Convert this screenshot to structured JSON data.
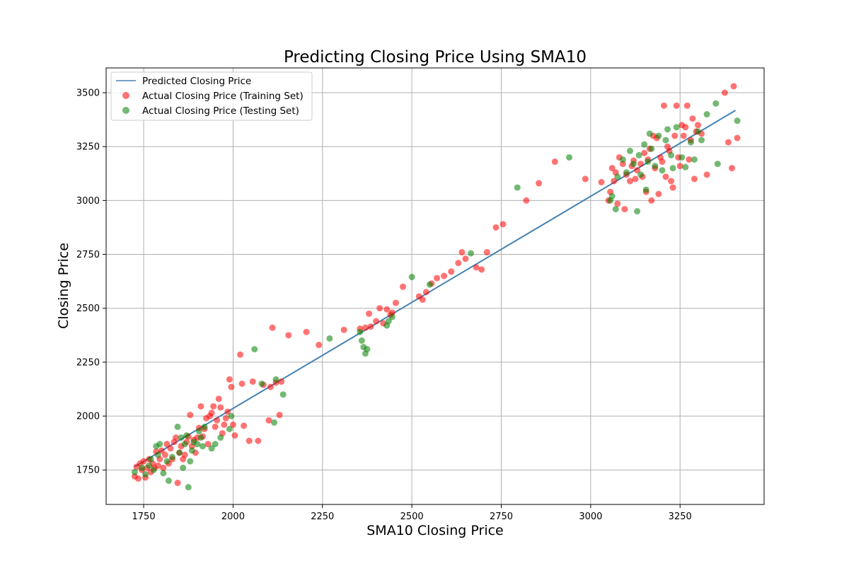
{
  "chart_data": {
    "type": "scatter",
    "title": "Predicting Closing Price Using SMA10",
    "xlabel": "SMA10 Closing Price",
    "ylabel": "Closing Price",
    "xlim": [
      1645,
      3485
    ],
    "ylim": [
      1590,
      3615
    ],
    "x_ticks": [
      1750,
      2000,
      2250,
      2500,
      2750,
      3000,
      3250
    ],
    "y_ticks": [
      1750,
      2000,
      2250,
      2500,
      2750,
      3000,
      3250,
      3500
    ],
    "grid": true,
    "legend_position": "top-left",
    "colors": {
      "line": "#4682b4",
      "training": "#ff0000",
      "testing": "#008000"
    },
    "series": [
      {
        "name": "Predicted Closing Price",
        "kind": "line",
        "points": [
          [
            1725,
            1765
          ],
          [
            3405,
            3418
          ]
        ]
      },
      {
        "name": "Actual Closing Price (Training Set)",
        "kind": "scatter",
        "points": [
          [
            1725,
            1720
          ],
          [
            1730,
            1765
          ],
          [
            1735,
            1710
          ],
          [
            1740,
            1780
          ],
          [
            1745,
            1750
          ],
          [
            1750,
            1790
          ],
          [
            1755,
            1715
          ],
          [
            1760,
            1760
          ],
          [
            1765,
            1800
          ],
          [
            1770,
            1740
          ],
          [
            1775,
            1780
          ],
          [
            1780,
            1760
          ],
          [
            1785,
            1835
          ],
          [
            1790,
            1770
          ],
          [
            1795,
            1800
          ],
          [
            1800,
            1840
          ],
          [
            1805,
            1760
          ],
          [
            1810,
            1820
          ],
          [
            1815,
            1870
          ],
          [
            1820,
            1780
          ],
          [
            1825,
            1850
          ],
          [
            1830,
            1800
          ],
          [
            1835,
            1880
          ],
          [
            1840,
            1900
          ],
          [
            1845,
            1690
          ],
          [
            1850,
            1830
          ],
          [
            1855,
            1860
          ],
          [
            1860,
            1800
          ],
          [
            1865,
            1820
          ],
          [
            1870,
            1880
          ],
          [
            1875,
            1905
          ],
          [
            1880,
            2005
          ],
          [
            1885,
            1860
          ],
          [
            1890,
            1890
          ],
          [
            1895,
            1830
          ],
          [
            1900,
            1900
          ],
          [
            1905,
            1945
          ],
          [
            1910,
            2045
          ],
          [
            1915,
            1905
          ],
          [
            1920,
            1940
          ],
          [
            1925,
            1990
          ],
          [
            1930,
            1870
          ],
          [
            1935,
            2000
          ],
          [
            1940,
            2015
          ],
          [
            1945,
            2045
          ],
          [
            1950,
            1950
          ],
          [
            1955,
            1980
          ],
          [
            1960,
            2080
          ],
          [
            1965,
            2040
          ],
          [
            1970,
            1920
          ],
          [
            1975,
            1960
          ],
          [
            1980,
            1990
          ],
          [
            1985,
            2020
          ],
          [
            1990,
            2170
          ],
          [
            1995,
            2135
          ],
          [
            2000,
            1960
          ],
          [
            2005,
            1910
          ],
          [
            2020,
            2285
          ],
          [
            2025,
            2150
          ],
          [
            2030,
            1955
          ],
          [
            2045,
            1885
          ],
          [
            2055,
            2160
          ],
          [
            2070,
            1885
          ],
          [
            2085,
            2145
          ],
          [
            2100,
            1980
          ],
          [
            2105,
            2135
          ],
          [
            2110,
            2410
          ],
          [
            2120,
            2155
          ],
          [
            2130,
            2005
          ],
          [
            2135,
            2160
          ],
          [
            2155,
            2375
          ],
          [
            2205,
            2390
          ],
          [
            2240,
            2330
          ],
          [
            2310,
            2400
          ],
          [
            2355,
            2405
          ],
          [
            2370,
            2410
          ],
          [
            2380,
            2475
          ],
          [
            2385,
            2415
          ],
          [
            2400,
            2440
          ],
          [
            2410,
            2500
          ],
          [
            2420,
            2430
          ],
          [
            2430,
            2495
          ],
          [
            2440,
            2470
          ],
          [
            2445,
            2480
          ],
          [
            2455,
            2525
          ],
          [
            2475,
            2600
          ],
          [
            2520,
            2555
          ],
          [
            2530,
            2540
          ],
          [
            2540,
            2575
          ],
          [
            2555,
            2615
          ],
          [
            2570,
            2640
          ],
          [
            2590,
            2650
          ],
          [
            2610,
            2670
          ],
          [
            2630,
            2710
          ],
          [
            2640,
            2760
          ],
          [
            2650,
            2730
          ],
          [
            2680,
            2690
          ],
          [
            2695,
            2680
          ],
          [
            2710,
            2760
          ],
          [
            2735,
            2875
          ],
          [
            2755,
            2890
          ],
          [
            2820,
            3000
          ],
          [
            2855,
            3080
          ],
          [
            2900,
            3180
          ],
          [
            2985,
            3100
          ],
          [
            3030,
            3085
          ],
          [
            3050,
            3000
          ],
          [
            3055,
            3040
          ],
          [
            3060,
            3150
          ],
          [
            3065,
            3090
          ],
          [
            3070,
            3130
          ],
          [
            3075,
            2985
          ],
          [
            3080,
            3200
          ],
          [
            3090,
            3170
          ],
          [
            3095,
            2960
          ],
          [
            3100,
            3120
          ],
          [
            3110,
            3090
          ],
          [
            3115,
            3160
          ],
          [
            3120,
            3185
          ],
          [
            3125,
            3100
          ],
          [
            3130,
            3140
          ],
          [
            3140,
            3170
          ],
          [
            3145,
            3110
          ],
          [
            3150,
            3220
          ],
          [
            3155,
            3040
          ],
          [
            3160,
            3190
          ],
          [
            3165,
            3240
          ],
          [
            3170,
            3000
          ],
          [
            3175,
            3300
          ],
          [
            3180,
            3150
          ],
          [
            3185,
            3290
          ],
          [
            3190,
            3030
          ],
          [
            3195,
            3200
          ],
          [
            3200,
            3180
          ],
          [
            3205,
            3440
          ],
          [
            3210,
            3110
          ],
          [
            3215,
            3250
          ],
          [
            3220,
            3230
          ],
          [
            3225,
            3090
          ],
          [
            3230,
            3060
          ],
          [
            3235,
            3300
          ],
          [
            3240,
            3440
          ],
          [
            3245,
            3200
          ],
          [
            3250,
            3160
          ],
          [
            3255,
            3350
          ],
          [
            3260,
            3300
          ],
          [
            3265,
            3340
          ],
          [
            3270,
            3440
          ],
          [
            3275,
            3190
          ],
          [
            3280,
            3280
          ],
          [
            3285,
            3380
          ],
          [
            3290,
            3100
          ],
          [
            3295,
            3320
          ],
          [
            3300,
            3350
          ],
          [
            3310,
            3310
          ],
          [
            3325,
            3120
          ],
          [
            3375,
            3500
          ],
          [
            3385,
            3270
          ],
          [
            3395,
            3150
          ],
          [
            3400,
            3530
          ],
          [
            3410,
            3290
          ]
        ]
      },
      {
        "name": "Actual Closing Price (Testing Set)",
        "kind": "scatter",
        "points": [
          [
            1725,
            1740
          ],
          [
            1745,
            1760
          ],
          [
            1755,
            1730
          ],
          [
            1765,
            1770
          ],
          [
            1770,
            1800
          ],
          [
            1778,
            1750
          ],
          [
            1785,
            1860
          ],
          [
            1790,
            1820
          ],
          [
            1795,
            1870
          ],
          [
            1805,
            1735
          ],
          [
            1815,
            1790
          ],
          [
            1820,
            1700
          ],
          [
            1830,
            1810
          ],
          [
            1845,
            1950
          ],
          [
            1850,
            1830
          ],
          [
            1855,
            1900
          ],
          [
            1860,
            1760
          ],
          [
            1865,
            1870
          ],
          [
            1870,
            1910
          ],
          [
            1875,
            1670
          ],
          [
            1880,
            1790
          ],
          [
            1885,
            1840
          ],
          [
            1890,
            1880
          ],
          [
            1900,
            1870
          ],
          [
            1905,
            1930
          ],
          [
            1910,
            1900
          ],
          [
            1915,
            1860
          ],
          [
            1920,
            1950
          ],
          [
            1940,
            1850
          ],
          [
            1950,
            1870
          ],
          [
            1965,
            1900
          ],
          [
            1990,
            1940
          ],
          [
            1995,
            2000
          ],
          [
            2060,
            2310
          ],
          [
            2080,
            2150
          ],
          [
            2115,
            1970
          ],
          [
            2120,
            2170
          ],
          [
            2140,
            2100
          ],
          [
            2270,
            2360
          ],
          [
            2355,
            2390
          ],
          [
            2360,
            2350
          ],
          [
            2365,
            2320
          ],
          [
            2370,
            2290
          ],
          [
            2375,
            2310
          ],
          [
            2430,
            2420
          ],
          [
            2435,
            2440
          ],
          [
            2445,
            2460
          ],
          [
            2500,
            2645
          ],
          [
            2550,
            2610
          ],
          [
            2665,
            2755
          ],
          [
            2795,
            3060
          ],
          [
            2940,
            3200
          ],
          [
            3055,
            3000
          ],
          [
            3060,
            3020
          ],
          [
            3070,
            2960
          ],
          [
            3075,
            3110
          ],
          [
            3090,
            3190
          ],
          [
            3100,
            3130
          ],
          [
            3110,
            3230
          ],
          [
            3120,
            3170
          ],
          [
            3130,
            2950
          ],
          [
            3135,
            3210
          ],
          [
            3140,
            3120
          ],
          [
            3150,
            3260
          ],
          [
            3155,
            3050
          ],
          [
            3160,
            3180
          ],
          [
            3165,
            3310
          ],
          [
            3170,
            3240
          ],
          [
            3180,
            3160
          ],
          [
            3190,
            3300
          ],
          [
            3200,
            3140
          ],
          [
            3210,
            3280
          ],
          [
            3215,
            3330
          ],
          [
            3225,
            3210
          ],
          [
            3230,
            3150
          ],
          [
            3240,
            3340
          ],
          [
            3255,
            3200
          ],
          [
            3265,
            3155
          ],
          [
            3280,
            3270
          ],
          [
            3290,
            3190
          ],
          [
            3300,
            3320
          ],
          [
            3310,
            3280
          ],
          [
            3325,
            3400
          ],
          [
            3350,
            3450
          ],
          [
            3355,
            3170
          ],
          [
            3410,
            3370
          ]
        ]
      }
    ]
  }
}
